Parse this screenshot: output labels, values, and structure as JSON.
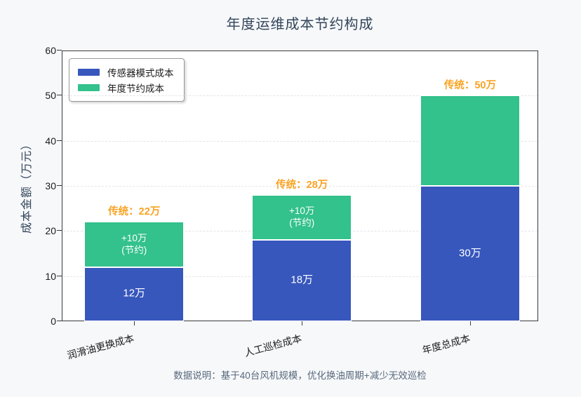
{
  "chart_data": {
    "type": "bar",
    "stacked": true,
    "title": "年度运维成本节约构成",
    "ylabel": "成本金额（万元）",
    "ylim": [
      0,
      60
    ],
    "yticks": [
      0,
      10,
      20,
      30,
      40,
      50,
      60
    ],
    "grid": "horizontal-dashed",
    "legend_position": "upper-left",
    "categories": [
      "润滑油更换成本",
      "人工巡检成本",
      "年度总成本"
    ],
    "series": [
      {
        "name": "传感器模式成本",
        "color": "#3757bd",
        "values": [
          12,
          18,
          30
        ],
        "labels": [
          "12万",
          "18万",
          "30万"
        ]
      },
      {
        "name": "年度节约成本",
        "color": "#33c18c",
        "values": [
          10,
          10,
          20
        ],
        "labels": [
          "+10万\n(节约)",
          "+10万\n(节约)",
          ""
        ]
      }
    ],
    "annotations": {
      "color": "#f9a322",
      "items": [
        "传统：22万",
        "传统：28万",
        "传统：50万"
      ]
    },
    "footnote": "数据说明：基于40台风机规模，优化换油周期+减少无效巡检"
  }
}
